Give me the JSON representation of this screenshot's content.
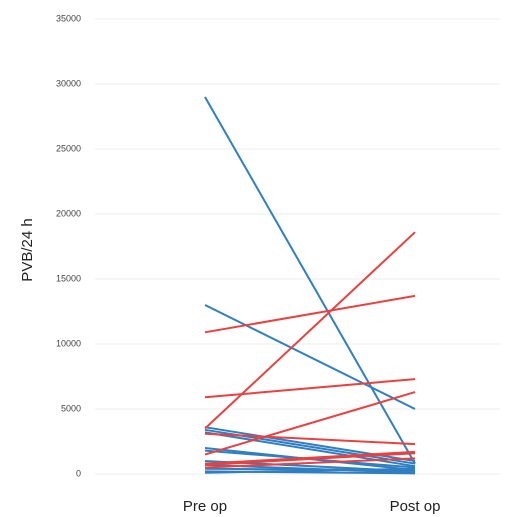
{
  "chart_data": {
    "type": "line",
    "y_label": "PVB/24 h",
    "categories": [
      "Pre op",
      "Post op"
    ],
    "ylim": [
      0,
      35000
    ],
    "yticks": [
      0,
      5000,
      10000,
      15000,
      20000,
      25000,
      30000,
      35000
    ],
    "grid": true,
    "series": [
      {
        "color": "#2f7fc1",
        "values": [
          29000,
          800
        ]
      },
      {
        "color": "#2f7fc1",
        "values": [
          13000,
          5000
        ]
      },
      {
        "color": "#2f7fc1",
        "values": [
          3600,
          1000
        ]
      },
      {
        "color": "#2f7fc1",
        "values": [
          3400,
          800
        ]
      },
      {
        "color": "#2f7fc1",
        "values": [
          3200,
          600
        ]
      },
      {
        "color": "#2f7fc1",
        "values": [
          2000,
          300
        ]
      },
      {
        "color": "#2f7fc1",
        "values": [
          1800,
          500
        ]
      },
      {
        "color": "#2f7fc1",
        "values": [
          1000,
          200
        ]
      },
      {
        "color": "#2f7fc1",
        "values": [
          700,
          100
        ]
      },
      {
        "color": "#2f7fc1",
        "values": [
          400,
          300
        ]
      },
      {
        "color": "#2f7fc1",
        "values": [
          200,
          50
        ]
      },
      {
        "color": "#2f7fc1",
        "values": [
          100,
          400
        ]
      },
      {
        "color": "#e8413f",
        "values": [
          10900,
          13700
        ]
      },
      {
        "color": "#e8413f",
        "values": [
          5900,
          7300
        ]
      },
      {
        "color": "#e8413f",
        "values": [
          3500,
          18600
        ]
      },
      {
        "color": "#e8413f",
        "values": [
          1500,
          6300
        ]
      },
      {
        "color": "#e8413f",
        "values": [
          3100,
          2300
        ]
      },
      {
        "color": "#e8413f",
        "values": [
          800,
          1700
        ]
      },
      {
        "color": "#e8413f",
        "values": [
          700,
          1600
        ]
      },
      {
        "color": "#e8413f",
        "values": [
          500,
          1200
        ]
      }
    ]
  }
}
